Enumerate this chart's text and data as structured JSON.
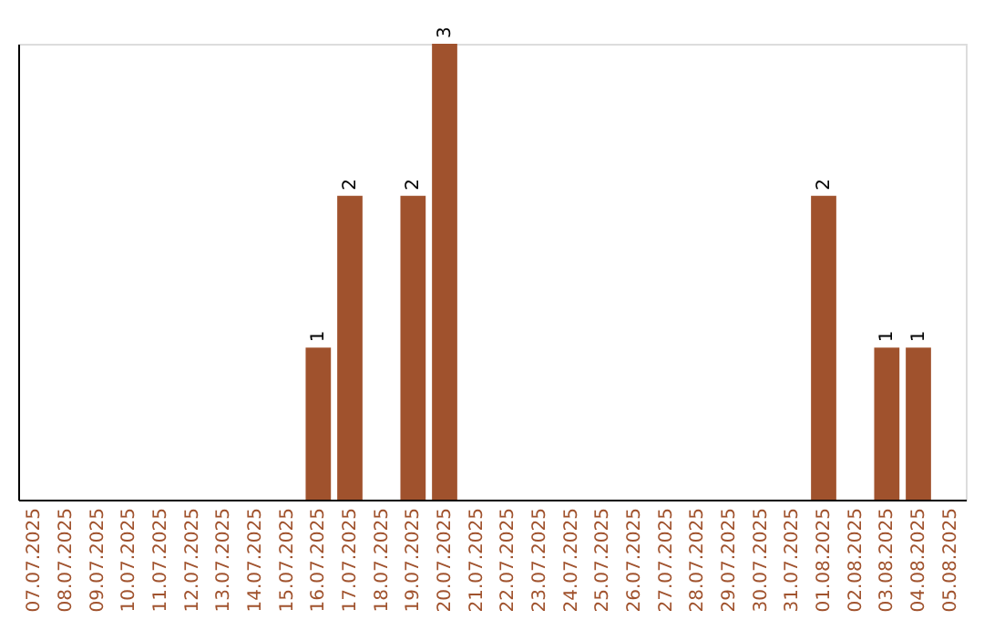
{
  "chart_data": {
    "type": "bar",
    "categories": [
      "07.07.2025",
      "08.07.2025",
      "09.07.2025",
      "10.07.2025",
      "11.07.2025",
      "12.07.2025",
      "13.07.2025",
      "14.07.2025",
      "15.07.2025",
      "16.07.2025",
      "17.07.2025",
      "18.07.2025",
      "19.07.2025",
      "20.07.2025",
      "21.07.2025",
      "22.07.2025",
      "23.07.2025",
      "24.07.2025",
      "25.07.2025",
      "26.07.2025",
      "27.07.2025",
      "28.07.2025",
      "29.07.2025",
      "30.07.2025",
      "31.07.2025",
      "01.08.2025",
      "02.08.2025",
      "03.08.2025",
      "04.08.2025",
      "05.08.2025"
    ],
    "values": [
      0,
      0,
      0,
      0,
      0,
      0,
      0,
      0,
      0,
      1,
      2,
      0,
      2,
      3,
      0,
      0,
      0,
      0,
      0,
      0,
      0,
      0,
      0,
      0,
      0,
      2,
      0,
      1,
      1,
      0
    ],
    "value_labels": [
      null,
      null,
      null,
      null,
      null,
      null,
      null,
      null,
      null,
      "1",
      "2",
      null,
      "2",
      "3",
      null,
      null,
      null,
      null,
      null,
      null,
      null,
      null,
      null,
      null,
      null,
      "2",
      null,
      "1",
      "1",
      null
    ],
    "color": "#a0522d",
    "tick_labels": "x",
    "grid": false
  }
}
